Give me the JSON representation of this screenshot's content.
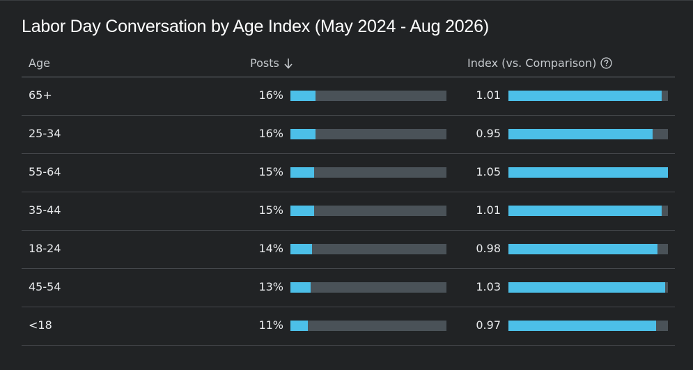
{
  "title": "Labor Day Conversation by Age Index (May 2024 - Aug 2026)",
  "columns": {
    "age": "Age",
    "posts": "Posts",
    "index": "Index (vs. Comparison)"
  },
  "icons": {
    "sort": "arrow-down-icon",
    "help": "question-circle-icon"
  },
  "colors": {
    "bar_fill": "#4cbfe8",
    "bar_track": "#4a5258",
    "background": "#212325"
  },
  "scales": {
    "posts_max_percent": 100,
    "index_max": 1.05
  },
  "rows": [
    {
      "age": "65+",
      "posts": "16%",
      "posts_pct": 16,
      "index": "1.01",
      "index_value": 1.01
    },
    {
      "age": "25-34",
      "posts": "16%",
      "posts_pct": 16,
      "index": "0.95",
      "index_value": 0.95
    },
    {
      "age": "55-64",
      "posts": "15%",
      "posts_pct": 15,
      "index": "1.05",
      "index_value": 1.05
    },
    {
      "age": "35-44",
      "posts": "15%",
      "posts_pct": 15,
      "index": "1.01",
      "index_value": 1.01
    },
    {
      "age": "18-24",
      "posts": "14%",
      "posts_pct": 14,
      "index": "0.98",
      "index_value": 0.98
    },
    {
      "age": "45-54",
      "posts": "13%",
      "posts_pct": 13,
      "index": "1.03",
      "index_value": 1.03
    },
    {
      "age": "<18",
      "posts": "11%",
      "posts_pct": 11,
      "index": "0.97",
      "index_value": 0.97
    }
  ]
}
